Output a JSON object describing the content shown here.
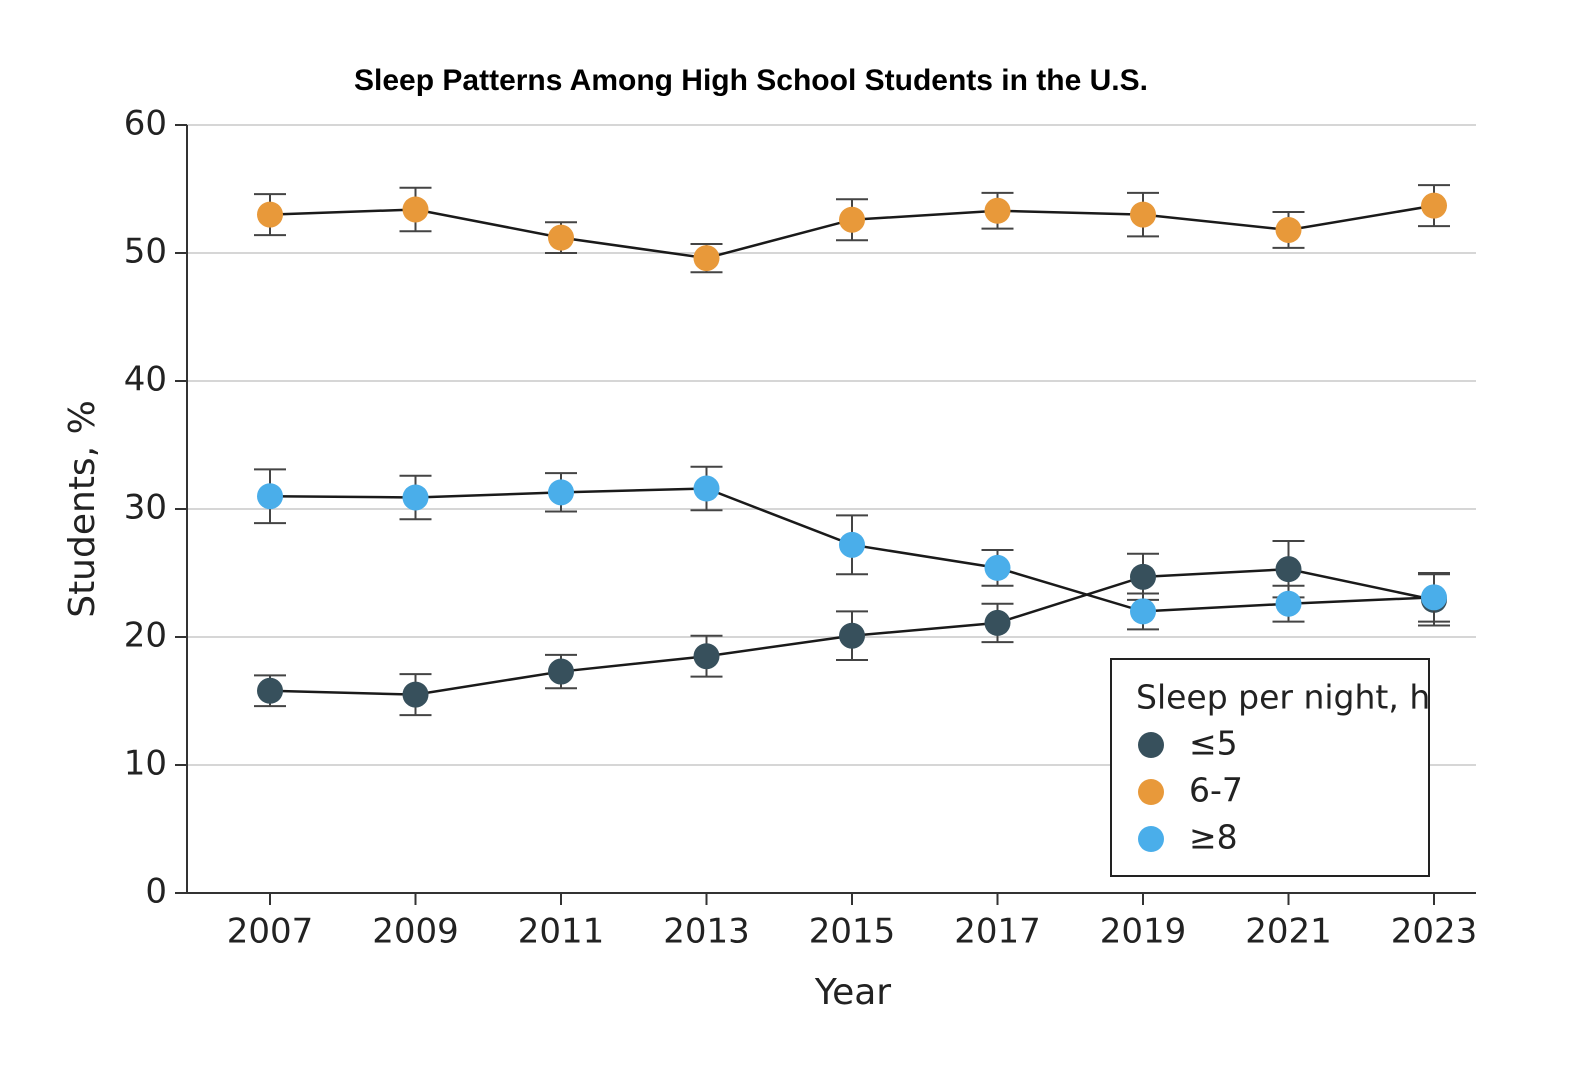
{
  "chart_data": {
    "type": "line",
    "title": "Sleep Patterns Among High School Students in the U.S.",
    "x_label": "Year",
    "y_label": "Students, %",
    "categories": [
      "2007",
      "2009",
      "2011",
      "2013",
      "2015",
      "2017",
      "2019",
      "2021",
      "2023"
    ],
    "legend_title": "Sleep per night, h",
    "legend_position": "lower right",
    "grid": true,
    "ylim": [
      0,
      60
    ],
    "yticks": [
      0,
      10,
      20,
      30,
      40,
      50,
      60
    ],
    "series": [
      {
        "name": "≤5",
        "color": "#37505c",
        "values": [
          15.8,
          15.5,
          17.3,
          18.5,
          20.1,
          21.1,
          24.7,
          25.3,
          22.9
        ],
        "errors": [
          1.2,
          1.6,
          1.3,
          1.6,
          1.9,
          1.5,
          1.8,
          2.2,
          2.0
        ]
      },
      {
        "name": "6-7",
        "color": "#e8993a",
        "values": [
          53.0,
          53.4,
          51.2,
          49.6,
          52.6,
          53.3,
          53.0,
          51.8,
          53.7
        ],
        "errors": [
          1.6,
          1.7,
          1.2,
          1.1,
          1.6,
          1.4,
          1.7,
          1.4,
          1.6
        ]
      },
      {
        "name": "≥8",
        "color": "#4aaeea",
        "values": [
          31.0,
          30.9,
          31.3,
          31.6,
          27.2,
          25.4,
          22.0,
          22.6,
          23.1
        ],
        "errors": [
          2.1,
          1.7,
          1.5,
          1.7,
          2.3,
          1.4,
          1.4,
          1.4,
          1.9
        ]
      }
    ]
  }
}
